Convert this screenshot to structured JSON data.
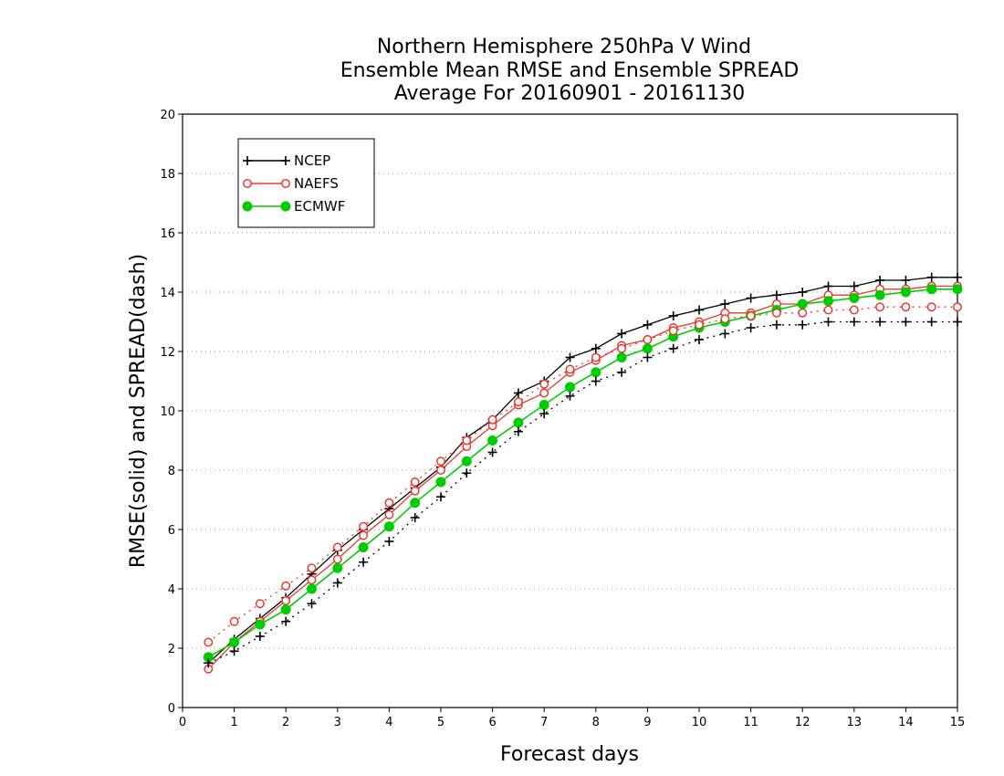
{
  "chart_data": {
    "type": "line",
    "title": [
      "Northern Hemisphere 250hPa V Wind",
      "Ensemble Mean RMSE and Ensemble SPREAD",
      "Average For 20160901 - 20161130"
    ],
    "xlabel": "Forecast days",
    "ylabel": "RMSE(solid) and SPREAD(dash)",
    "xlim": [
      0,
      15
    ],
    "ylim": [
      0,
      20
    ],
    "xticks": [
      0,
      1,
      2,
      3,
      4,
      5,
      6,
      7,
      8,
      9,
      10,
      11,
      12,
      13,
      14,
      15
    ],
    "yticks": [
      0,
      2,
      4,
      6,
      8,
      10,
      12,
      14,
      16,
      18,
      20
    ],
    "grid": "horizontal dotted",
    "legend_position": "top-left",
    "x": [
      0.5,
      1,
      1.5,
      2,
      2.5,
      3,
      3.5,
      4,
      4.5,
      5,
      5.5,
      6,
      6.5,
      7,
      7.5,
      8,
      8.5,
      9,
      9.5,
      10,
      10.5,
      11,
      11.5,
      12,
      12.5,
      13,
      13.5,
      14,
      14.5,
      15
    ],
    "series": [
      {
        "name": "NCEP",
        "color": "#000000",
        "marker": "plus",
        "kind": "rmse",
        "values": [
          1.5,
          2.3,
          3.0,
          3.7,
          4.5,
          5.3,
          6.0,
          6.7,
          7.4,
          8.1,
          9.1,
          9.7,
          10.6,
          11.0,
          11.8,
          12.1,
          12.6,
          12.9,
          13.2,
          13.4,
          13.6,
          13.8,
          13.9,
          14.0,
          14.2,
          14.2,
          14.4,
          14.4,
          14.5,
          14.5
        ]
      },
      {
        "name": "NEAFS",
        "color": "#e8392e",
        "marker": "circle",
        "kind": "rmse",
        "values": [
          1.3,
          2.2,
          2.9,
          3.6,
          4.3,
          5.0,
          5.8,
          6.5,
          7.3,
          8.0,
          8.8,
          9.5,
          10.2,
          10.6,
          11.3,
          11.7,
          12.2,
          12.4,
          12.8,
          13.0,
          13.3,
          13.3,
          13.6,
          13.6,
          13.9,
          13.9,
          14.1,
          14.1,
          14.2,
          14.2
        ]
      },
      {
        "name": "ECMWF",
        "color": "#00cc00",
        "marker": "filled-circle",
        "kind": "rmse",
        "values": [
          1.7,
          2.2,
          2.8,
          3.3,
          4.0,
          4.7,
          5.4,
          6.1,
          6.9,
          7.6,
          8.3,
          9.0,
          9.6,
          10.2,
          10.8,
          11.3,
          11.8,
          12.1,
          12.5,
          12.8,
          13.0,
          13.2,
          13.4,
          13.6,
          13.7,
          13.8,
          13.9,
          14.0,
          14.1,
          14.1
        ]
      },
      {
        "name": "NCEP",
        "color": "#000000",
        "marker": "plus",
        "kind": "spread",
        "values": [
          1.5,
          1.9,
          2.4,
          2.9,
          3.5,
          4.2,
          4.9,
          5.6,
          6.4,
          7.1,
          7.9,
          8.6,
          9.3,
          9.9,
          10.5,
          11.0,
          11.3,
          11.8,
          12.1,
          12.4,
          12.6,
          12.8,
          12.9,
          12.9,
          13.0,
          13.0,
          13.0,
          13.0,
          13.0,
          13.0
        ]
      },
      {
        "name": "NEAFS",
        "color": "#e8392e",
        "marker": "circle",
        "kind": "spread",
        "values": [
          2.2,
          2.9,
          3.5,
          4.1,
          4.7,
          5.4,
          6.1,
          6.9,
          7.6,
          8.3,
          9.0,
          9.7,
          10.3,
          10.9,
          11.4,
          11.8,
          12.1,
          12.4,
          12.7,
          12.9,
          13.1,
          13.2,
          13.3,
          13.3,
          13.4,
          13.4,
          13.5,
          13.5,
          13.5,
          13.5
        ]
      }
    ]
  },
  "legend": [
    {
      "label": "NCEP",
      "color": "#000000",
      "marker": "plus"
    },
    {
      "label": "NAEFS",
      "color": "#e8392e",
      "marker": "circle"
    },
    {
      "label": "ECMWF",
      "color": "#00cc00",
      "marker": "filled-circle"
    }
  ]
}
